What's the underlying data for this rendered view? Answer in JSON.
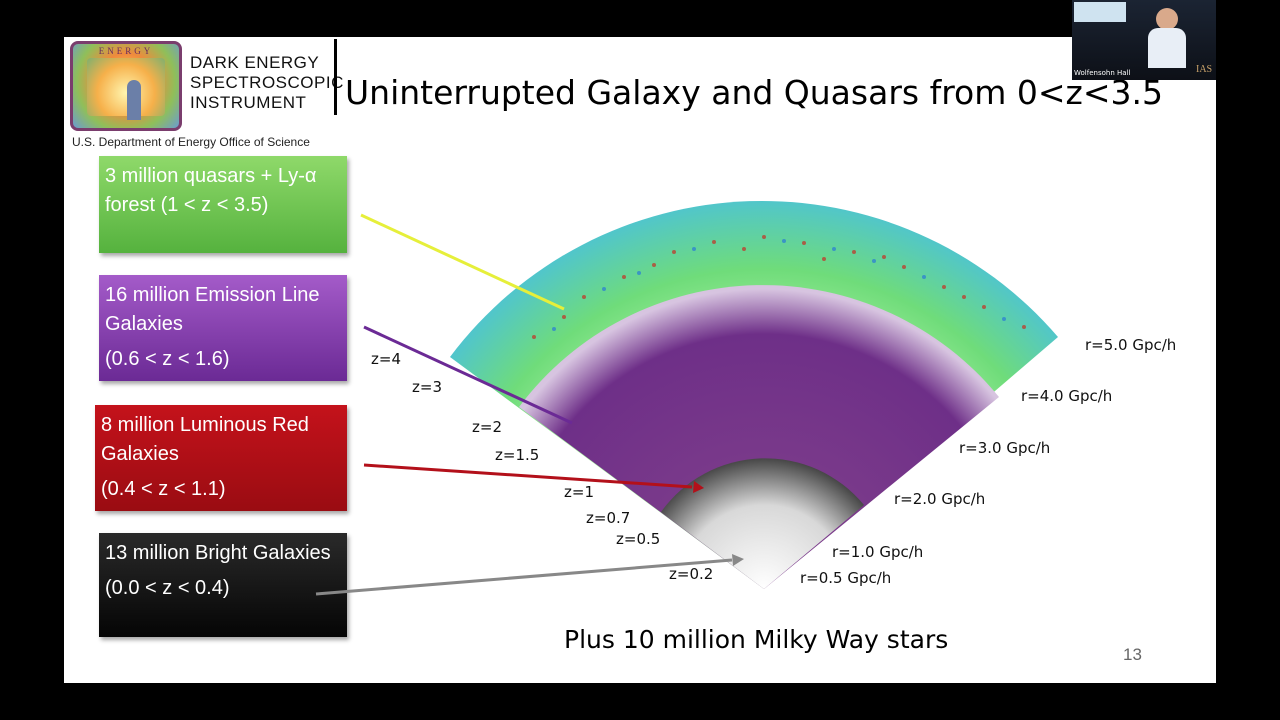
{
  "slide": {
    "org_lines": [
      "DARK ENERGY",
      "SPECTROSCOPIC",
      "INSTRUMENT"
    ],
    "department": "U.S. Department of Energy Office of Science",
    "logo_text": "ENERGY",
    "title": "Uninterrupted Galaxy and Quasars from 0<z<3.5",
    "boxes": [
      {
        "text": "3 million quasars + Ly-α forest (1 < z < 3.5)",
        "range": "",
        "color": "#6cc24a"
      },
      {
        "text": "16 million Emission Line Galaxies",
        "range": "(0.6 < z < 1.6)",
        "color": "#8a3fb5"
      },
      {
        "text": "8 million Luminous Red Galaxies",
        "range": "(0.4 < z < 1.1)",
        "color": "#b3101a"
      },
      {
        "text": "13 million Bright Galaxies",
        "range": "(0.0 < z < 0.4)",
        "color": "#111111"
      }
    ],
    "z_labels": [
      "z=4",
      "z=3",
      "z=2",
      "z=1.5",
      "z=1",
      "z=0.7",
      "z=0.5",
      "z=0.2"
    ],
    "r_labels": [
      "r=5.0 Gpc/h",
      "r=4.0 Gpc/h",
      "r=3.0 Gpc/h",
      "r=2.0 Gpc/h",
      "r=1.0 Gpc/h",
      "r=0.5 Gpc/h"
    ],
    "footer": "Plus 10 million Milky Way stars",
    "page_number": "13"
  },
  "webcam": {
    "caption": "Wolfensohn Hall",
    "watermark": "IAS"
  }
}
